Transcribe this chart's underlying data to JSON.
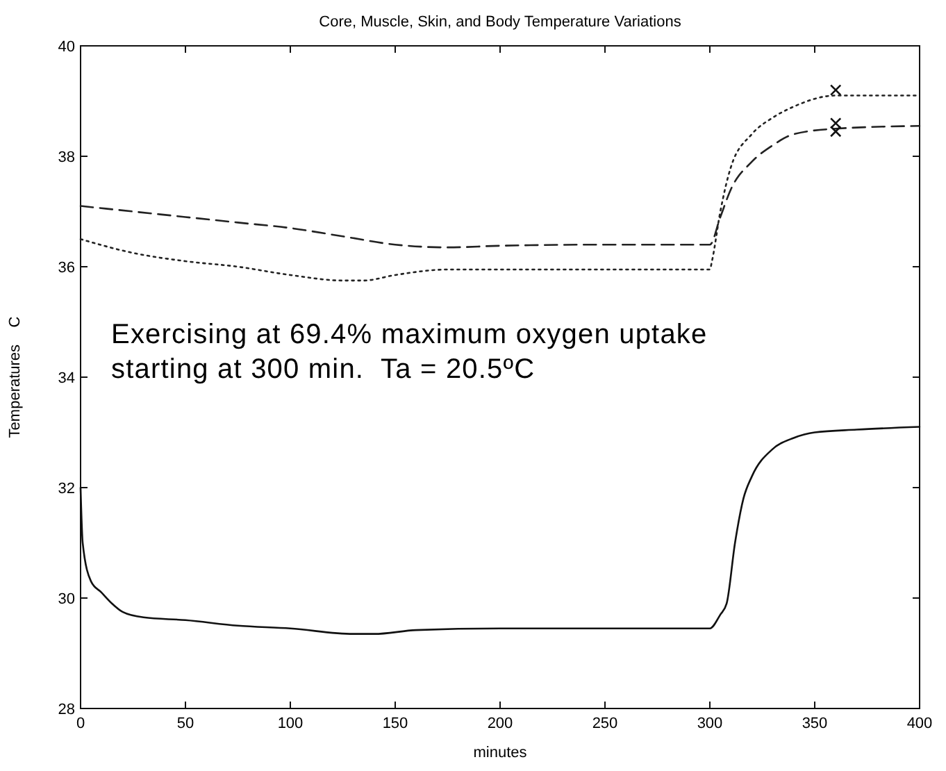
{
  "chart_data": {
    "type": "line",
    "title": "Core, Muscle, Skin, and Body Temperature Variations",
    "xlabel": "minutes",
    "ylabel": "Temperatures    C",
    "xlim": [
      0,
      400
    ],
    "ylim": [
      28,
      40
    ],
    "xticks": [
      0,
      50,
      100,
      150,
      200,
      250,
      300,
      350,
      400
    ],
    "yticks": [
      28,
      30,
      32,
      34,
      36,
      38,
      40
    ],
    "grid": false,
    "annotations": [
      "Exercising at 69.4% maximum oxygen uptake",
      "starting at 300 min.  Ta = 20.5ºC"
    ],
    "series": [
      {
        "color": "#222222",
        "line_style": "dashed",
        "marker": "none",
        "x": [
          0,
          25,
          50,
          75,
          100,
          125,
          150,
          175,
          200,
          250,
          300,
          305,
          310,
          320,
          330,
          340,
          360,
          400
        ],
        "values": [
          37.1,
          37.0,
          36.9,
          36.8,
          36.7,
          36.55,
          36.4,
          36.35,
          36.38,
          36.4,
          36.4,
          36.9,
          37.4,
          37.9,
          38.2,
          38.4,
          38.5,
          38.55
        ]
      },
      {
        "color": "#222222",
        "line_style": "dotted",
        "marker": "none",
        "x": [
          0,
          25,
          50,
          75,
          100,
          125,
          135,
          150,
          175,
          200,
          250,
          300,
          301,
          305,
          310,
          320,
          330,
          340,
          360,
          400
        ],
        "values": [
          36.5,
          36.25,
          36.1,
          36.0,
          35.85,
          35.75,
          35.75,
          35.85,
          35.95,
          35.95,
          35.95,
          35.95,
          36.1,
          37.0,
          37.8,
          38.4,
          38.7,
          38.9,
          39.1,
          39.1
        ]
      },
      {
        "color": "#111111",
        "line_style": "solid",
        "marker": "none",
        "x": [
          0,
          1,
          5,
          10,
          15,
          20,
          30,
          50,
          75,
          100,
          130,
          140,
          160,
          200,
          250,
          300,
          305,
          308,
          312,
          316,
          320,
          330,
          340,
          350,
          370,
          400
        ],
        "values": [
          32.0,
          31.0,
          30.3,
          30.1,
          29.9,
          29.75,
          29.65,
          29.6,
          29.5,
          29.45,
          29.35,
          29.35,
          29.42,
          29.45,
          29.45,
          29.45,
          29.7,
          29.9,
          31.0,
          31.8,
          32.2,
          32.7,
          32.9,
          33.0,
          33.05,
          33.1
        ]
      },
      {
        "type": "scatter",
        "color": "#111111",
        "marker": "cross",
        "x": [
          360,
          360,
          360
        ],
        "values": [
          39.2,
          38.6,
          38.45
        ]
      }
    ]
  }
}
